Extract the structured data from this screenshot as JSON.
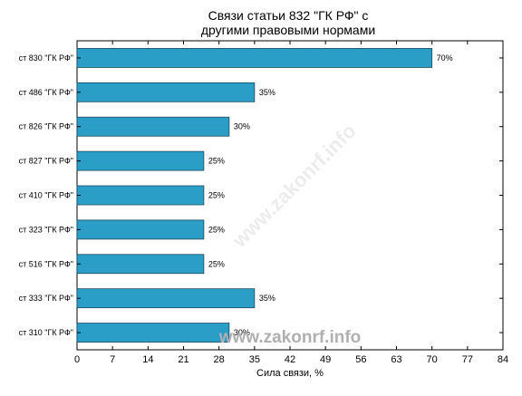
{
  "chart_data": {
    "type": "bar",
    "orientation": "horizontal",
    "title_line1": "Связи статьи 832 \"ГК РФ\" с",
    "title_line2": "другими правовыми нормами",
    "xlabel": "Сила связи, %",
    "ylabel": "",
    "xlim": [
      0,
      84
    ],
    "xticks": [
      0,
      7,
      14,
      21,
      28,
      35,
      42,
      49,
      56,
      63,
      70,
      77,
      84
    ],
    "grid": false,
    "bar_color": "#2b9ec8",
    "bar_edge_color": "#1a4a5e",
    "categories": [
      "ст 830 \"ГК РФ\"",
      "ст 486 \"ГК РФ\"",
      "ст 826 \"ГК РФ\"",
      "ст 827 \"ГК РФ\"",
      "ст 410 \"ГК РФ\"",
      "ст 323 \"ГК РФ\"",
      "ст 516 \"ГК РФ\"",
      "ст 333 \"ГК РФ\"",
      "ст 310 \"ГК РФ\""
    ],
    "values": [
      70,
      35,
      30,
      25,
      25,
      25,
      25,
      35,
      30
    ],
    "value_labels": [
      "70%",
      "35%",
      "30%",
      "25%",
      "25%",
      "25%",
      "25%",
      "35%",
      "30%"
    ]
  },
  "watermark": {
    "main": "www.zakonrf.info",
    "diagonal": "www.zakonrf.info"
  }
}
